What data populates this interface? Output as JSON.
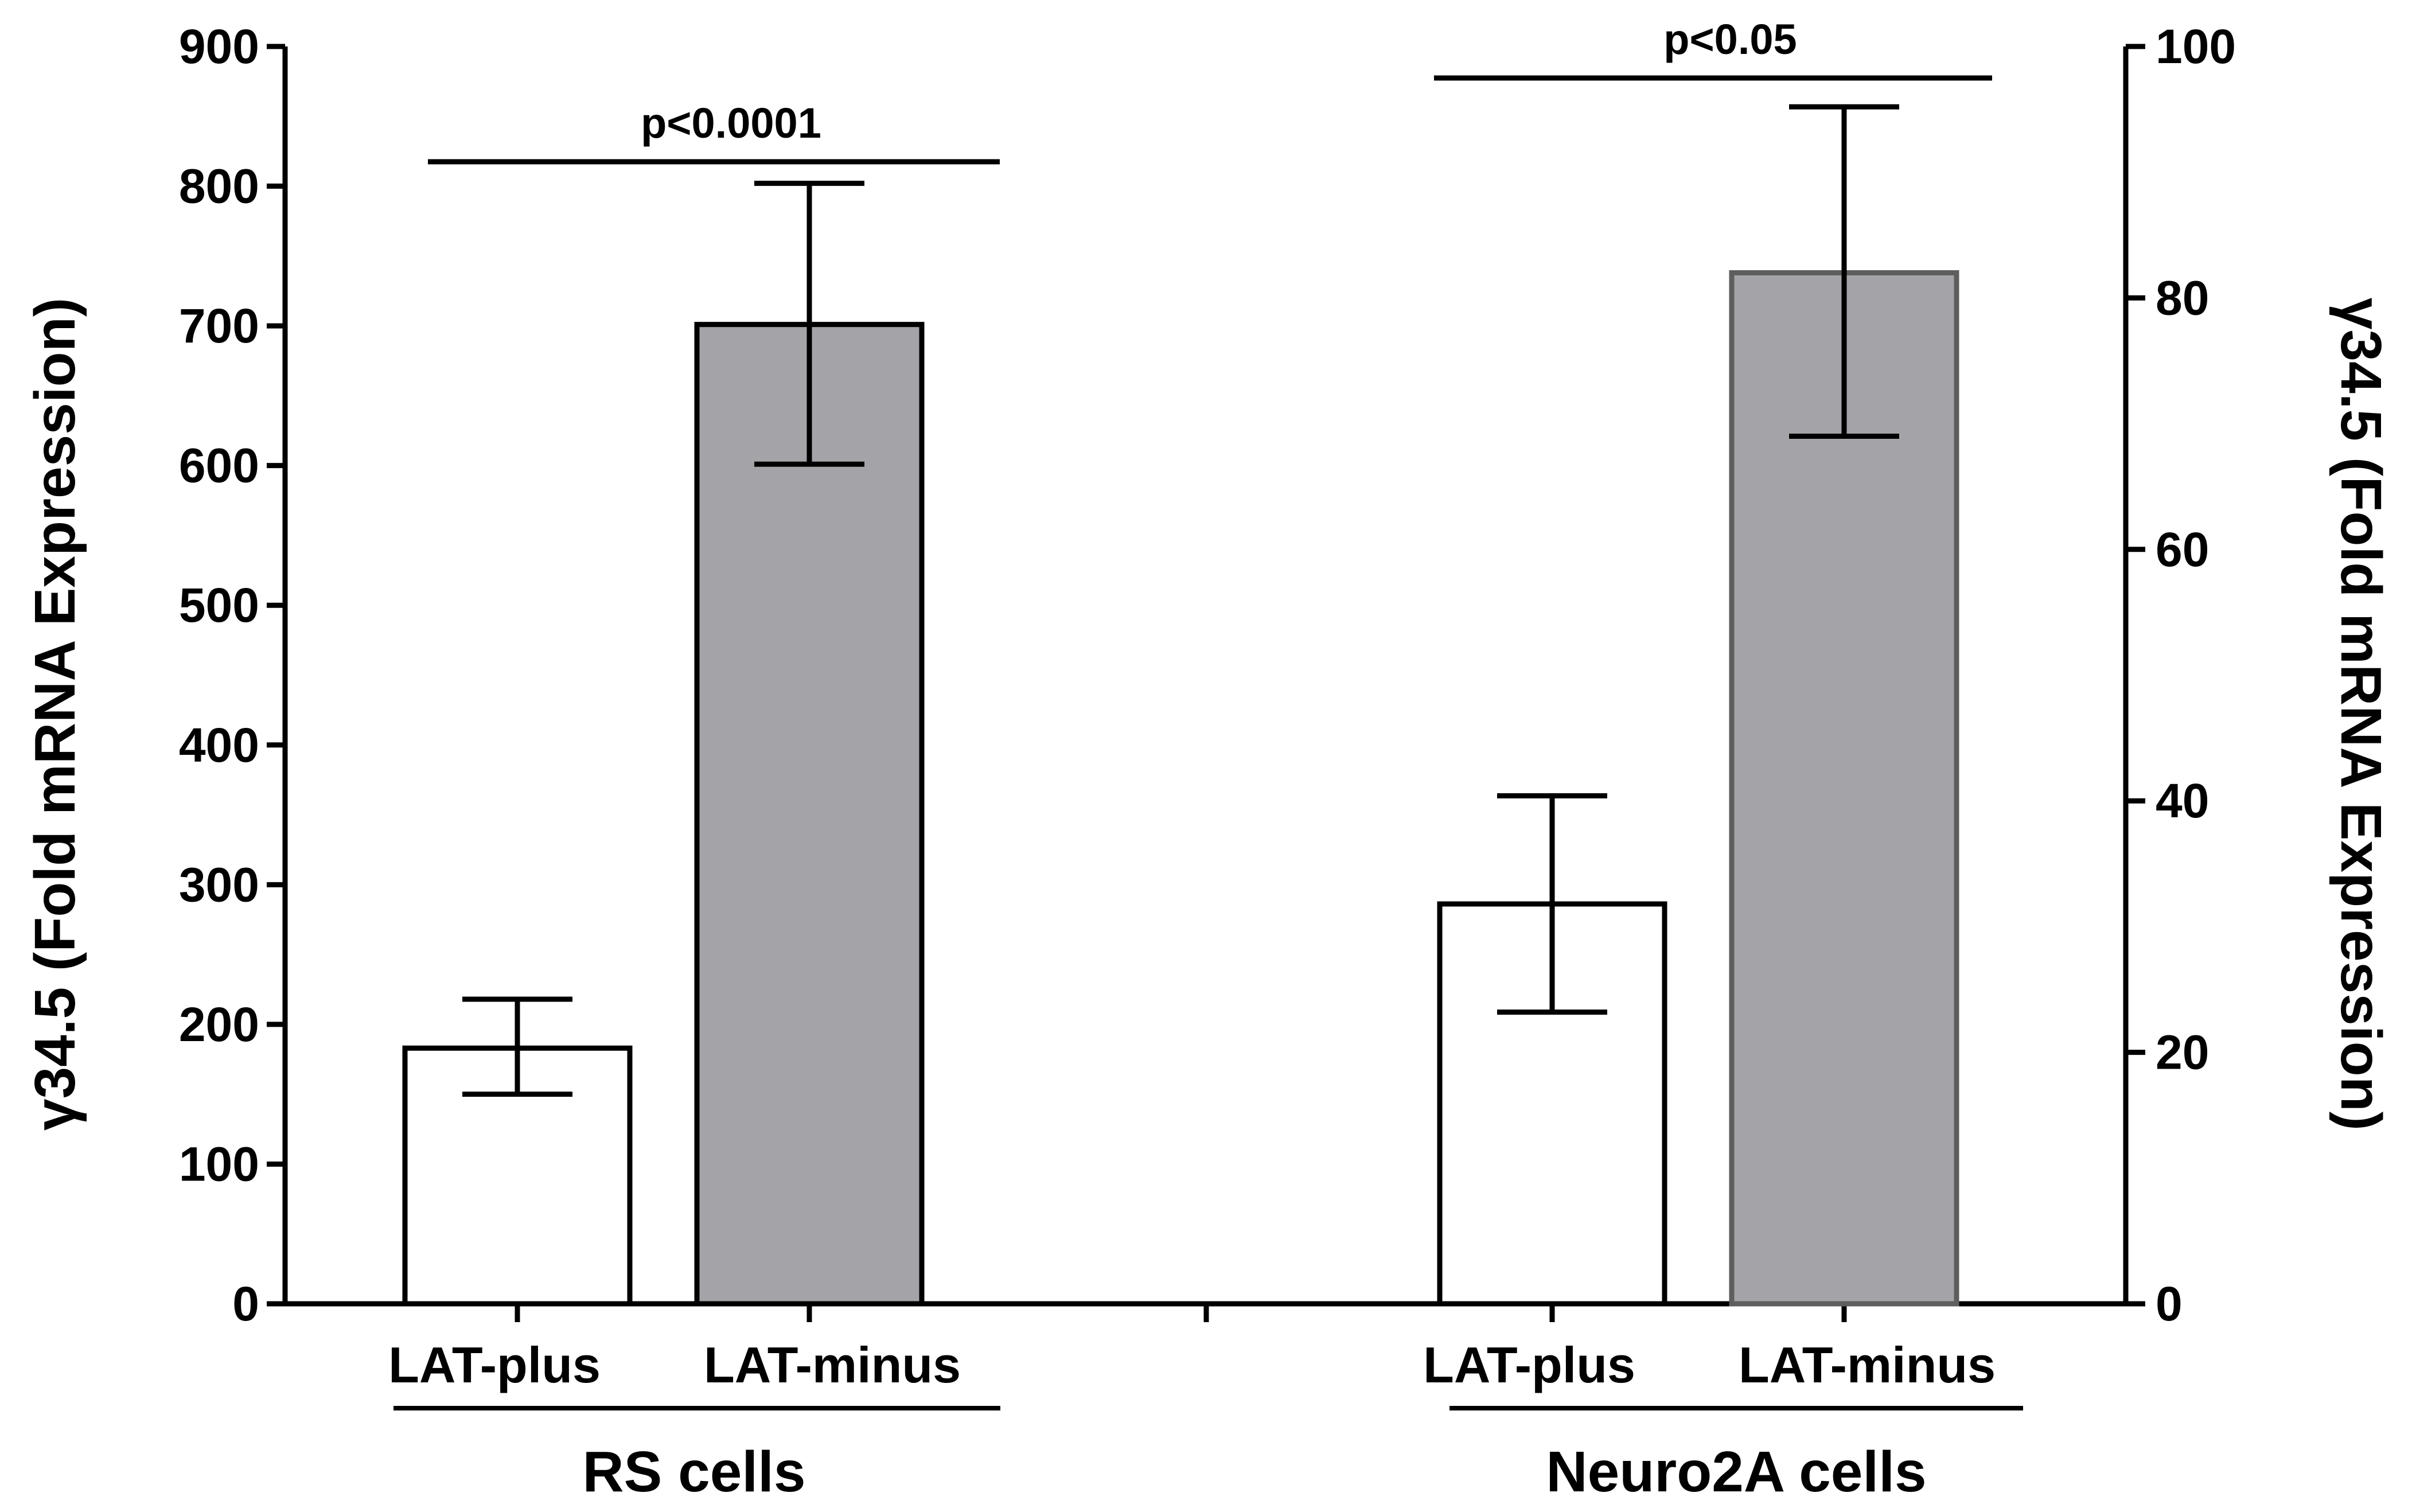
{
  "chart_data": {
    "type": "bar",
    "left_axis": {
      "label": "γ34.5 (Fold mRNA Expression)",
      "min": 0,
      "max": 900,
      "ticks": [
        0,
        100,
        200,
        300,
        400,
        500,
        600,
        700,
        800,
        900
      ]
    },
    "right_axis": {
      "label": "γ34.5 (Fold mRNA Expression)",
      "min": 0,
      "max": 100,
      "ticks": [
        0,
        20,
        40,
        60,
        80,
        100
      ]
    },
    "groups": [
      {
        "name": "RS cells",
        "axis": "left",
        "significance": "p<0.0001",
        "bars": [
          {
            "category": "LAT-plus",
            "value": 183,
            "error_low": 150,
            "error_high": 218,
            "fill": "#ffffff"
          },
          {
            "category": "LAT-minus",
            "value": 701,
            "error_low": 601,
            "error_high": 802,
            "fill": "#a4a4a8"
          }
        ]
      },
      {
        "name": "Neuro2A cells",
        "axis": "right",
        "significance": "p<0.05",
        "bars": [
          {
            "category": "LAT-plus",
            "value": 31.8,
            "error_low": 23.2,
            "error_high": 40.4,
            "fill": "#ffffff"
          },
          {
            "category": "LAT-minus",
            "value": 82,
            "error_low": 69,
            "error_high": 95.2,
            "fill": "#a4a4a8"
          }
        ]
      }
    ],
    "grid": false,
    "legend": "none"
  }
}
